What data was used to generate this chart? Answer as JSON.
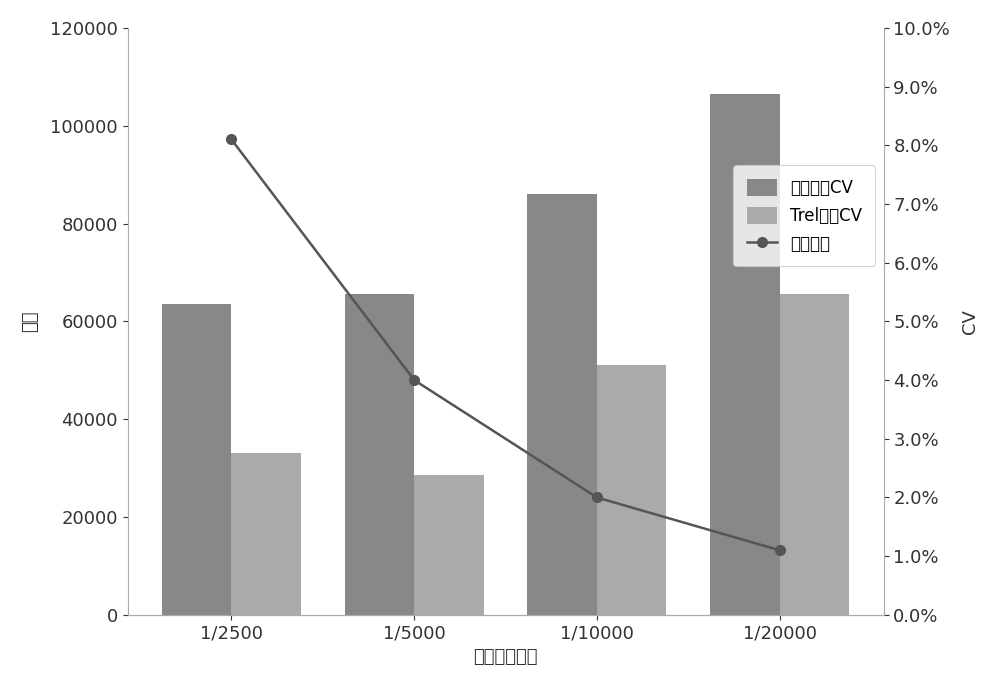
{
  "categories": [
    "1/2500",
    "1/5000",
    "1/10000",
    "1/20000"
  ],
  "bar1_values": [
    63500,
    65500,
    86000,
    106500
  ],
  "bar2_values": [
    33000,
    28500,
    51000,
    65500
  ],
  "line_values": [
    0.081,
    0.04,
    0.02,
    0.011
  ],
  "bar1_color": "#888888",
  "bar2_color": "#aaaaaa",
  "line_color": "#555555",
  "xlabel": "质控使用比例",
  "ylabel_left": "信号",
  "ylabel_right": "CV",
  "ylim_left": [
    0,
    120000
  ],
  "ylim_right": [
    0,
    0.1
  ],
  "yticks_left": [
    0,
    20000,
    40000,
    60000,
    80000,
    100000,
    120000
  ],
  "yticks_right": [
    0.0,
    0.01,
    0.02,
    0.03,
    0.04,
    0.05,
    0.06,
    0.07,
    0.08,
    0.09,
    0.1
  ],
  "legend_labels": [
    "质控信号CV",
    "Trel浓度CV",
    "质控信号"
  ],
  "background_color": "#ffffff",
  "bar_width": 0.38,
  "fontsize": 13,
  "xlabel_fontsize": 13
}
